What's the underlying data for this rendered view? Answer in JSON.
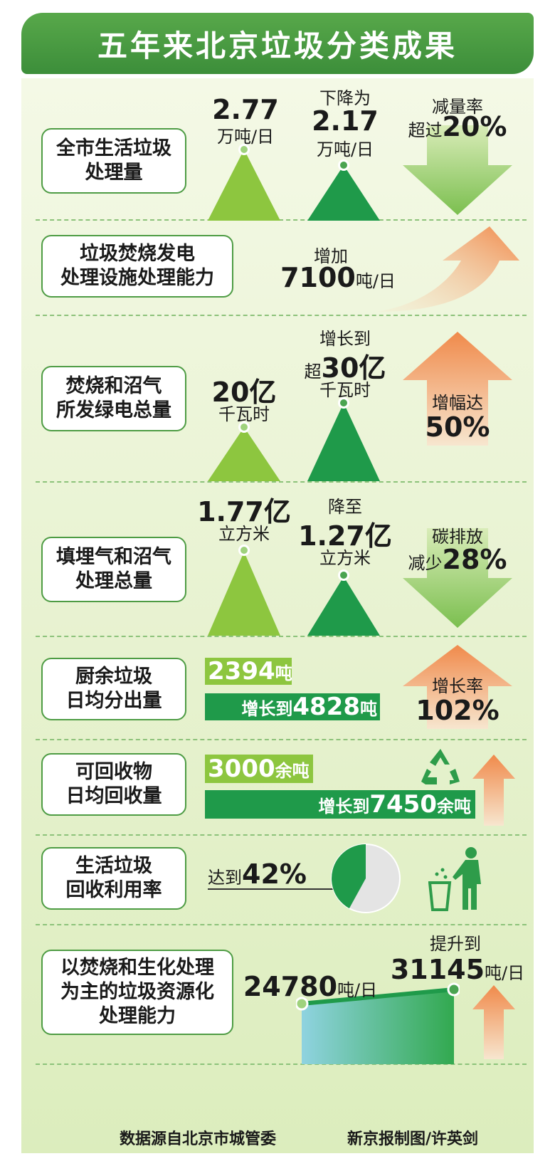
{
  "title": "五年来北京垃圾分类成果",
  "chart_data": {
    "type": "infographic",
    "title": "五年来北京垃圾分类成果",
    "rows": [
      {
        "label": "全市生活垃圾处理量",
        "before": 2.77,
        "after": 2.17,
        "unit": "万吨/日",
        "change": "减量率超过20%"
      },
      {
        "label": "垃圾焚烧发电处理设施处理能力",
        "increase": 7100,
        "unit": "吨/日"
      },
      {
        "label": "焚烧和沼气所发绿电总量",
        "before": 20,
        "after": 30,
        "unit": "亿千瓦时",
        "change": "增幅达50%"
      },
      {
        "label": "填埋气和沼气处理总量",
        "before": 1.77,
        "after": 1.27,
        "unit": "亿立方米",
        "change": "碳排放减少28%"
      },
      {
        "label": "厨余垃圾日均分出量",
        "before": 2394,
        "after": 4828,
        "unit": "吨",
        "change": "增长率102%"
      },
      {
        "label": "可回收物日均回收量",
        "before": 3000,
        "after": 7450,
        "unit": "余吨"
      },
      {
        "label": "生活垃圾回收利用率",
        "value": 42,
        "unit": "%"
      },
      {
        "label": "以焚烧和生化处理为主的垃圾资源化处理能力",
        "before": 24780,
        "after": 31145,
        "unit": "吨/日"
      }
    ]
  },
  "rows": {
    "r1": {
      "label": "全市生活垃圾\n处理量",
      "v1": "2.77",
      "u1": "万吨/日",
      "pre2": "下降为",
      "v2": "2.17",
      "u2": "万吨/日",
      "c1": "减量率",
      "c2a": "超过",
      "c2b": "20%"
    },
    "r2": {
      "label": "垃圾焚烧发电\n处理设施处理能力",
      "pre": "增加",
      "v": "7100",
      "u": "吨/日"
    },
    "r3": {
      "label": "焚烧和沼气\n所发绿电总量",
      "v1": "20亿",
      "u1": "千瓦时",
      "pre2": "增长到",
      "pre2b": "超",
      "v2": "30亿",
      "u2": "千瓦时",
      "c1": "增幅达",
      "c2": "50%"
    },
    "r4": {
      "label": "填埋气和沼气\n处理总量",
      "v1": "1.77亿",
      "u1": "立方米",
      "pre2": "降至",
      "v2": "1.27亿",
      "u2": "立方米",
      "c1": "碳排放",
      "c2a": "减少",
      "c2b": "28%"
    },
    "r5": {
      "label": "厨余垃圾\n日均分出量",
      "b1n": "2394",
      "b1u": "吨",
      "b2p": "增长到",
      "b2n": "4828",
      "b2u": "吨",
      "c1": "增长率",
      "c2": "102%"
    },
    "r6": {
      "label": "可回收物\n日均回收量",
      "b1n": "3000",
      "b1u": "余吨",
      "b2p": "增长到",
      "b2n": "7450",
      "b2u": "余吨"
    },
    "r7": {
      "label": "生活垃圾\n回收利用率",
      "pre": "达到",
      "v": "42%"
    },
    "r8": {
      "label": "以焚烧和生化处理\n为主的垃圾资源化\n处理能力",
      "v1": "24780",
      "u1": "吨/日",
      "pre2": "提升到",
      "v2": "31145",
      "u2": "吨/日"
    }
  },
  "footer": {
    "source": "数据源自北京市城管委",
    "credit": "新京报制图/许英剑"
  },
  "colors": {
    "light_green": "#8dc63f",
    "dark_green": "#1f9a4a",
    "orange": "#f08a4b",
    "pie_grey": "#e4e4e4"
  },
  "icons": [
    "recycle-icon",
    "person-trash-icon",
    "arrow-down-icon",
    "arrow-up-icon"
  ]
}
